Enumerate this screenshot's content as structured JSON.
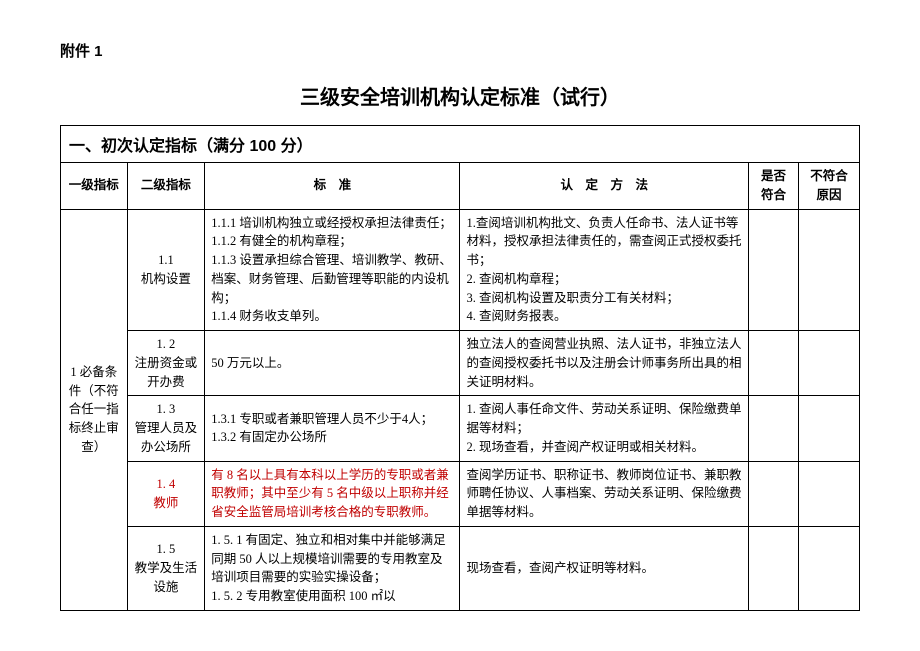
{
  "attachment_label": "附件 1",
  "title": "三级安全培训机构认定标准（试行）",
  "section_title": "一、初次认定指标（满分 100 分）",
  "headers": {
    "col1": "一级指标",
    "col2": "二级指标",
    "col3": "标　准",
    "col4": "认　定　方　法",
    "col5": "是否符合",
    "col6": "不符合原因"
  },
  "level1": "1 必备条件（不符合任一指标终止审查）",
  "rows": [
    {
      "level2": "1.1\n机构设置",
      "standard": "1.1.1 培训机构独立或经授权承担法律责任；\n1.1.2 有健全的机构章程；\n1.1.3 设置承担综合管理、培训教学、教研、档案、财务管理、后勤管理等职能的内设机构；\n1.1.4 财务收支单列。",
      "method": "1.查阅培训机构批文、负责人任命书、法人证书等材料，授权承担法律责任的，需查阅正式授权委托书；\n2. 查阅机构章程；\n3. 查阅机构设置及职责分工有关材料；\n4. 查阅财务报表。"
    },
    {
      "level2": "1. 2\n注册资金或开办费",
      "standard": "50 万元以上。",
      "method": "独立法人的查阅营业执照、法人证书，非独立法人的查阅授权委托书以及注册会计师事务所出具的相关证明材料。"
    },
    {
      "level2": "1. 3\n管理人员及办公场所",
      "standard": "1.3.1 专职或者兼职管理人员不少于4人；\n1.3.2 有固定办公场所",
      "method": "1. 查阅人事任命文件、劳动关系证明、保险缴费单据等材料；\n2. 现场查看，并查阅产权证明或相关材料。"
    },
    {
      "level2": "1. 4\n教师",
      "level2_red": true,
      "standard": "有 8 名以上具有本科以上学历的专职或者兼职教师；其中至少有 5 名中级以上职称并经省安全监管局培训考核合格的专职教师。",
      "standard_red": true,
      "method": "查阅学历证书、职称证书、教师岗位证书、兼职教师聘任协议、人事档案、劳动关系证明、保险缴费单据等材料。"
    },
    {
      "level2": "1. 5\n教学及生活设施",
      "standard": "1. 5. 1 有固定、独立和相对集中并能够满足同期 50 人以上规模培训需要的专用教室及培训项目需要的实验实操设备；\n1. 5. 2 专用教室使用面积 100 ㎡以",
      "method": "现场查看，查阅产权证明等材料。"
    }
  ]
}
